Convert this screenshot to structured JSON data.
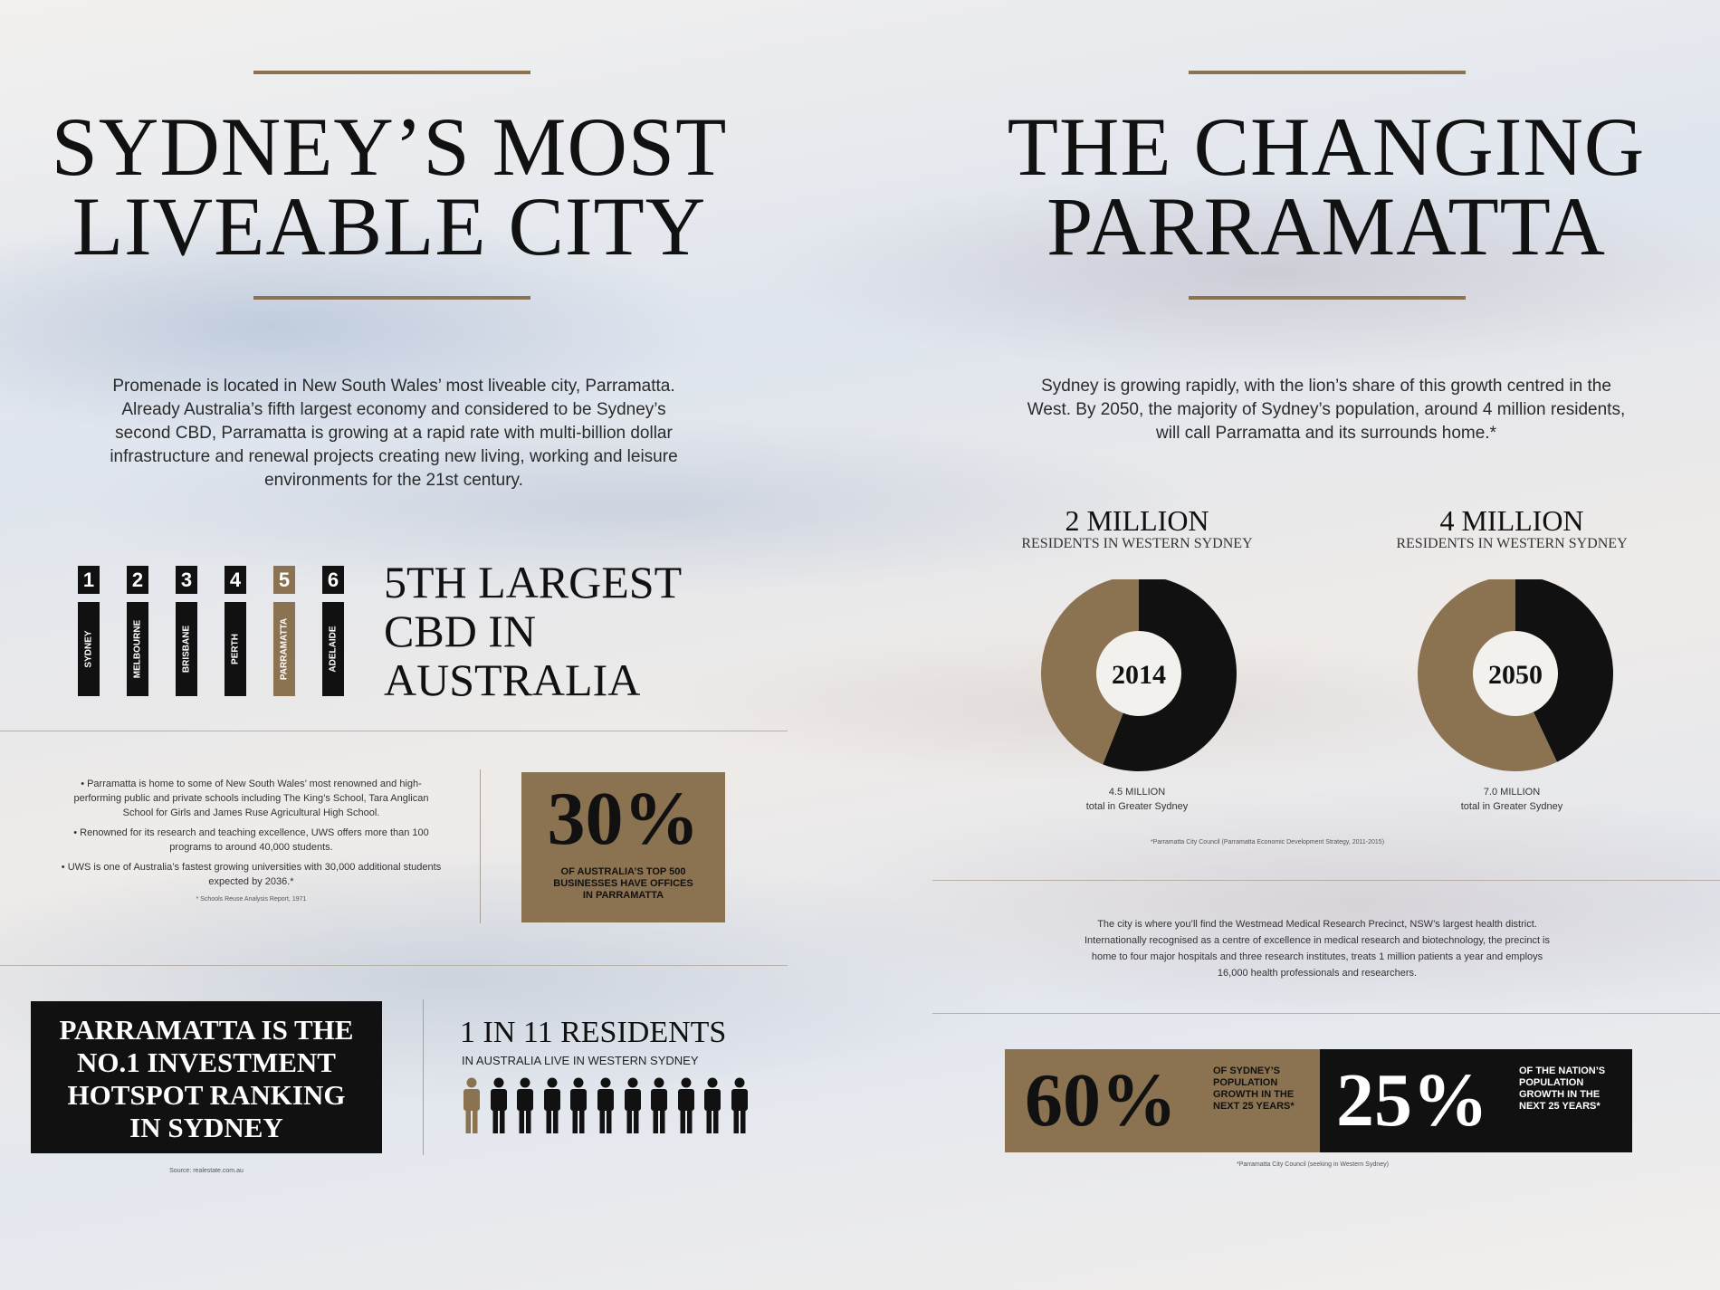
{
  "left": {
    "title_line1": "SYDNEY’S MOST",
    "title_line2": "LIVEABLE CITY",
    "intro": "Promenade is located in New South Wales’ most liveable city, Parramatta. Already Australia’s fifth largest economy and considered to be Sydney’s second CBD, Parramatta is growing at a rapid rate with multi-billion dollar infrastructure and renewal projects creating new living, working and leisure environments for the 21st century.",
    "cbd_ranking": [
      {
        "rank": "1",
        "city": "SYDNEY"
      },
      {
        "rank": "2",
        "city": "MELBOURNE"
      },
      {
        "rank": "3",
        "city": "BRISBANE"
      },
      {
        "rank": "4",
        "city": "PERTH"
      },
      {
        "rank": "5",
        "city": "PARRAMATTA"
      },
      {
        "rank": "6",
        "city": "ADELAIDE"
      }
    ],
    "cbd_heading_line1": "5TH LARGEST",
    "cbd_heading_line2": "CBD IN",
    "cbd_heading_line3": "AUSTRALIA",
    "bullets": [
      "• Parramatta is home to some of New South Wales’ most renowned and high-performing public and private schools including The King’s School, Tara Anglican School for Girls and James Ruse Agricultural High School.",
      "• Renowned for its research and teaching excellence, UWS offers more than 100 programs to around 40,000 students.",
      "• UWS is one of Australia’s fastest growing universities with 30,000 additional students expected by 2036.*"
    ],
    "bullets_footnote": "* Schools Reuse Analysis Report, 1971",
    "stat30_value": "30%",
    "stat30_caption": "OF AUSTRALIA’S TOP 500 BUSINESSES HAVE OFFICES IN PARRAMATTA",
    "hotspot_line1": "PARRAMATTA IS THE",
    "hotspot_line2": "NO.1 INVESTMENT",
    "hotspot_line3": "HOTSPOT RANKING",
    "hotspot_line4": "IN SYDNEY",
    "hotspot_source": "Source: realestate.com.au",
    "residents_heading": "1 IN 11 RESIDENTS",
    "residents_sub": "IN AUSTRALIA LIVE IN WESTERN SYDNEY",
    "residents_ratio": {
      "highlighted": 1,
      "total": 11
    }
  },
  "right": {
    "title_line1": "THE CHANGING",
    "title_line2": "PARRAMATTA",
    "intro": "Sydney is growing rapidly, with the lion’s share of this growth centred in the West. By 2050, the majority of Sydney’s population, around 4 million residents, will call Parramatta and its surrounds home.*",
    "donuts": [
      {
        "heading": "2 MILLION",
        "sub": "RESIDENTS IN WESTERN SYDNEY",
        "year": "2014",
        "western_fraction": 0.44,
        "total_line1": "4.5 MILLION",
        "total_line2": "total in Greater Sydney"
      },
      {
        "heading": "4 MILLION",
        "sub": "RESIDENTS IN WESTERN SYDNEY",
        "year": "2050",
        "western_fraction": 0.57,
        "total_line1": "7.0 MILLION",
        "total_line2": "total in Greater Sydney"
      }
    ],
    "donut_colors": {
      "western": "#8b7351",
      "rest": "#111111"
    },
    "donut_footnote": "*Parramatta City Council (Parramatta Economic Development Strategy, 2011-2015)",
    "medical_text": "The city is where you’ll find the Westmead Medical Research Precinct, NSW’s largest health district. Internationally recognised as a centre of excellence in medical research and biotechnology, the precinct is home to four major hospitals and three research institutes, treats 1 million patients a year and employs 16,000 health professionals and researchers.",
    "stat60_value": "60%",
    "stat60_caption": "OF SYDNEY’S POPULATION GROWTH IN THE NEXT 25 YEARS*",
    "stat25_value": "25%",
    "stat25_caption": "OF THE NATION’S POPULATION GROWTH IN THE NEXT 25 YEARS*",
    "growth_footnote": "*Parramatta City Council (seeking in Western Sydney)"
  },
  "colors": {
    "gold": "#8b7351",
    "black": "#111111"
  }
}
